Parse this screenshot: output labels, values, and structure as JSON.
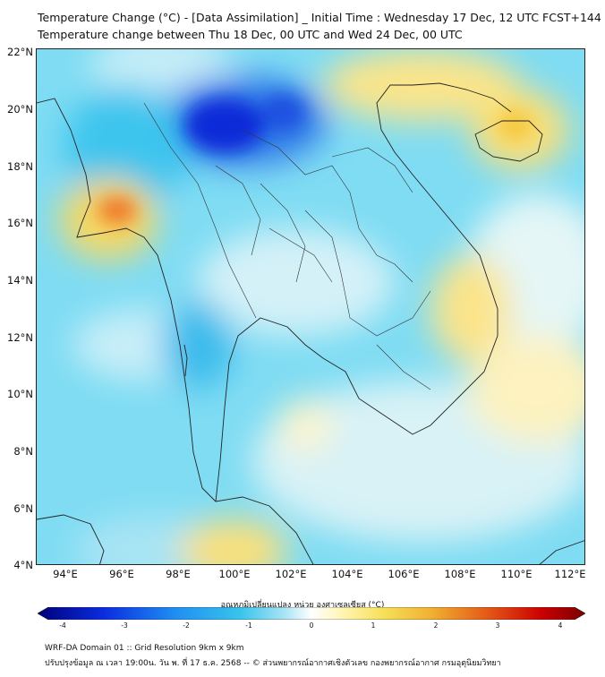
{
  "header": {
    "title_line1": "Temperature Change (°C) - [Data Assimilation] _ Initial Time : Wednesday 17 Dec, 12 UTC FCST+144",
    "title_line2": "Temperature change between Thu 18 Dec, 00 UTC and Wed 24 Dec, 00 UTC"
  },
  "map": {
    "lat_labels": [
      "22°N",
      "20°N",
      "18°N",
      "16°N",
      "14°N",
      "12°N",
      "10°N",
      "8°N",
      "6°N",
      "4°N"
    ],
    "lon_labels": [
      "94°E",
      "96°E",
      "98°E",
      "100°E",
      "102°E",
      "104°E",
      "106°E",
      "108°E",
      "110°E",
      "112°E"
    ],
    "lon_range": [
      93,
      112.5
    ],
    "lat_range": [
      4,
      22.2
    ],
    "colors": {
      "coastline": "#222222",
      "border": "#333333"
    }
  },
  "colorbar": {
    "label": "อุณหภูมิเปลี่ยนแปลง หน่วย องศาเซลเซียส (°C)",
    "ticks": [
      "-4",
      "-3",
      "-2",
      "-1",
      "0",
      "1",
      "2",
      "3",
      "4"
    ],
    "range": [
      -4,
      4
    ],
    "colors": [
      "#00007a",
      "#0a2ce0",
      "#1f8ef2",
      "#38c4ec",
      "#a8e4f4",
      "#ffffff",
      "#fff4b0",
      "#f7e05a",
      "#f0b030",
      "#e55a17",
      "#cc0000",
      "#7a0000"
    ]
  },
  "footer": {
    "line1": "WRF-DA Domain 01 :: Grid Resolution 9km x 9km",
    "line2": "ปรับปรุงข้อมูล ณ เวลา 19:00น. วัน พ. ที่ 17 ธ.ค. 2568 -- © ส่วนพยากรณ์อากาศเชิงตัวเลข กองพยากรณ์อากาศ กรมอุตุนิยมวิทยา"
  }
}
